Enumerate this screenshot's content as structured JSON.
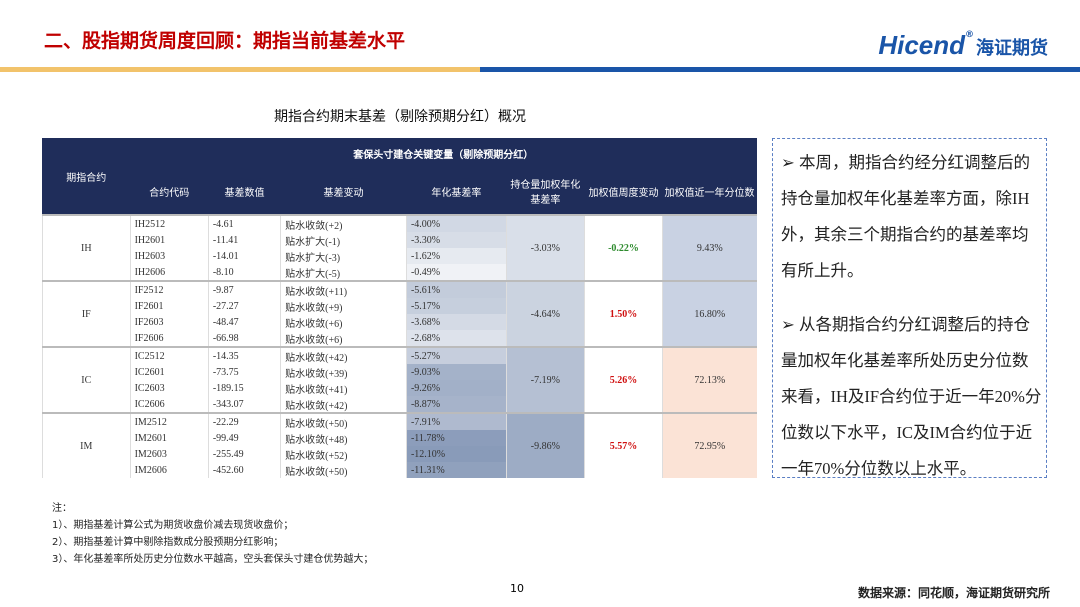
{
  "header": {
    "title": "二、股指期货周度回顾：期指当前基差水平",
    "logo": {
      "brand": "Hicend",
      "mark": "®",
      "name": "海证期货"
    }
  },
  "table": {
    "caption": "期指合约期末基差（剔除预期分红）概况",
    "corner": "期指合约",
    "group_header": "套保头寸建仓关键变量（剔除预期分红）",
    "columns": [
      "合约代码",
      "基差数值",
      "基差变动",
      "年化基差率",
      "持仓量加权年化基差率",
      "加权值周度变动",
      "加权值近一年分位数"
    ],
    "groups": [
      {
        "name": "IH",
        "rows": [
          [
            "IH2512",
            "-4.61",
            "贴水收敛(+2)",
            "-4.00%"
          ],
          [
            "IH2601",
            "-11.41",
            "贴水扩大(-1)",
            "-3.30%"
          ],
          [
            "IH2603",
            "-14.01",
            "贴水扩大(-3)",
            "-1.62%"
          ],
          [
            "IH2606",
            "-8.10",
            "贴水扩大(-5)",
            "-0.49%"
          ]
        ],
        "weighted": "-3.03%",
        "weekly_change": "-0.22%",
        "percentile": "9.43%"
      },
      {
        "name": "IF",
        "rows": [
          [
            "IF2512",
            "-9.87",
            "贴水收敛(+11)",
            "-5.61%"
          ],
          [
            "IF2601",
            "-27.27",
            "贴水收敛(+9)",
            "-5.17%"
          ],
          [
            "IF2603",
            "-48.47",
            "贴水收敛(+6)",
            "-3.68%"
          ],
          [
            "IF2606",
            "-66.98",
            "贴水收敛(+6)",
            "-2.68%"
          ]
        ],
        "weighted": "-4.64%",
        "weekly_change": "1.50%",
        "percentile": "16.80%"
      },
      {
        "name": "IC",
        "rows": [
          [
            "IC2512",
            "-14.35",
            "贴水收敛(+42)",
            "-5.27%"
          ],
          [
            "IC2601",
            "-73.75",
            "贴水收敛(+39)",
            "-9.03%"
          ],
          [
            "IC2603",
            "-189.15",
            "贴水收敛(+41)",
            "-9.26%"
          ],
          [
            "IC2606",
            "-343.07",
            "贴水收敛(+42)",
            "-8.87%"
          ]
        ],
        "weighted": "-7.19%",
        "weekly_change": "5.26%",
        "percentile": "72.13%"
      },
      {
        "name": "IM",
        "rows": [
          [
            "IM2512",
            "-22.29",
            "贴水收敛(+50)",
            "-7.91%"
          ],
          [
            "IM2601",
            "-99.49",
            "贴水收敛(+48)",
            "-11.78%"
          ],
          [
            "IM2603",
            "-255.49",
            "贴水收敛(+52)",
            "-12.10%"
          ],
          [
            "IM2606",
            "-452.60",
            "贴水收敛(+50)",
            "-11.31%"
          ]
        ],
        "weighted": "-9.86%",
        "weekly_change": "5.57%",
        "percentile": "72.95%"
      }
    ]
  },
  "commentary": {
    "paragraphs": [
      "本周，期指合约经分红调整后的持仓量加权年化基差率方面，除IH外，其余三个期指合约的基差率均有所上升。",
      "从各期指合约分红调整后的持仓量加权年化基差率所处历史分位数来看，IH及IF合约位于近一年20%分位数以下水平，IC及IM合约位于近一年70%分位数以上水平。"
    ]
  },
  "notes": {
    "title": "注：",
    "items": [
      "1）、期指基差计算公式为期货收盘价减去现货收盘价；",
      "2）、期指基差计算中剔除指数成分股预期分红影响；",
      "3）、年化基差率所处历史分位数水平越高，空头套保头寸建仓优势越大；"
    ]
  },
  "footer": {
    "page": "10",
    "source": "数据来源：同花顺，海证期货研究所"
  }
}
